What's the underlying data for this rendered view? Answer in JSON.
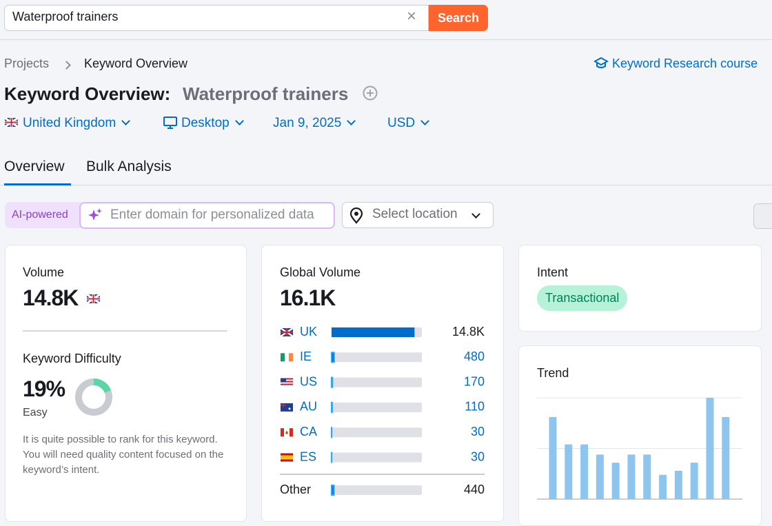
{
  "search": {
    "query": "Waterproof trainers",
    "button": "Search"
  },
  "breadcrumb": [
    "Projects",
    "Keyword Overview"
  ],
  "course_link": "Keyword Research course",
  "title": {
    "prefix": "Keyword Overview:",
    "keyword": "Waterproof trainers"
  },
  "filters": [
    "United Kingdom",
    "Desktop",
    "Jan 9, 2025",
    "USD"
  ],
  "tabs": [
    "Overview",
    "Bulk Analysis"
  ],
  "ai": {
    "badge": "AI-powered",
    "placeholder": "Enter domain for personalized data",
    "location": "Select location"
  },
  "volume_card": {
    "label": "Volume",
    "value": "14.8K"
  },
  "kd": {
    "label": "Keyword Difficulty",
    "value": 19,
    "value_label": "19%",
    "level": "Easy",
    "description": "It is quite possible to rank for this keyword. You will need quality content focused on the keyword’s intent."
  },
  "global": {
    "label": "Global Volume",
    "value": 16100,
    "value_label": "16.1K",
    "countries": [
      "UK",
      "IE",
      "US",
      "AU",
      "CA",
      "ES"
    ],
    "values": [
      14800,
      480,
      170,
      110,
      30,
      30
    ],
    "value_labels": [
      "14.8K",
      "480",
      "170",
      "110",
      "30",
      "30"
    ],
    "other": {
      "name": "Other",
      "value": 440,
      "value_label": "440"
    }
  },
  "intent": {
    "label": "Intent",
    "value": "Transactional"
  },
  "trend": {
    "label": "Trend",
    "values": [
      0.81,
      0.54,
      0.54,
      0.44,
      0.36,
      0.44,
      0.44,
      0.24,
      0.28,
      0.36,
      1.0,
      0.81
    ],
    "ylim": [
      0,
      1
    ],
    "yticks": [
      0,
      0.5,
      1
    ],
    "color": "#8ec5ef"
  }
}
